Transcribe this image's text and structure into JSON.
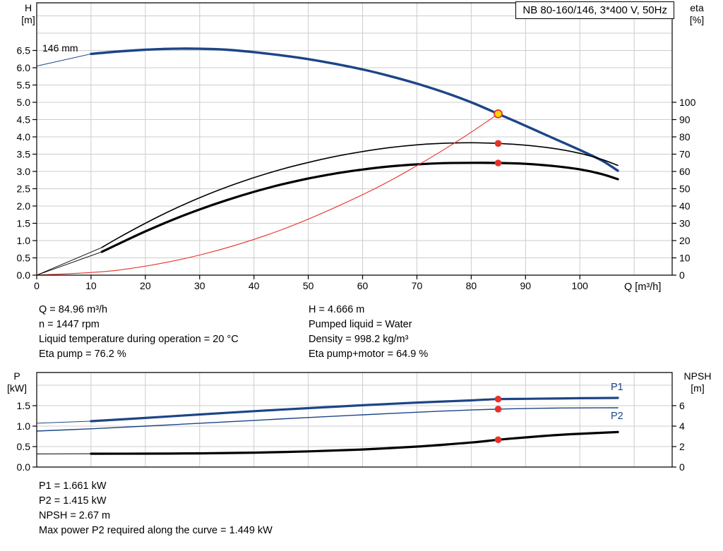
{
  "title_box": {
    "label": "NB 80-160/146, 3*400 V, 50Hz"
  },
  "axes_labels": {
    "h": "H",
    "h_unit": "[m]",
    "eta": "eta",
    "eta_unit": "[%]",
    "q": "Q [m³/h]",
    "p": "P",
    "p_unit": "[kW]",
    "npsh": "NPSH",
    "npsh_unit": "[m]"
  },
  "impeller_label": "146 mm",
  "curve_labels": {
    "p1": "P1",
    "p2": "P2"
  },
  "info_top_left": [
    "Q = 84.96 m³/h",
    "n = 1447 rpm",
    "Liquid temperature during operation = 20 °C",
    "Eta pump = 76.2 %"
  ],
  "info_top_right": [
    "H = 4.666 m",
    "Pumped liquid = Water",
    "Density = 998.2 kg/m³",
    "Eta pump+motor = 64.9 %"
  ],
  "info_bottom": [
    "P1 = 1.661 kW",
    "P2 = 1.415 kW",
    "NPSH = 2.67 m",
    "Max power P2 required along the curve = 1.449 kW"
  ],
  "colors": {
    "curve_blue": "#1c4587",
    "curve_black": "#000000",
    "duty_red": "#e8312a",
    "duty_yellow": "#ffd500",
    "grid": "#cccccc",
    "axis": "#000000"
  },
  "chart_data": [
    {
      "type": "line",
      "name": "qh-eta-chart",
      "title": "NB 80-160/146, 3*400 V, 50Hz",
      "xlabel": "Q [m³/h]",
      "ylabel_left": "H [m]",
      "ylabel_right": "eta [%]",
      "x_range": [
        0,
        117
      ],
      "x_ticks": [
        0,
        10,
        20,
        30,
        40,
        50,
        60,
        70,
        80,
        90,
        100
      ],
      "y_left_ticks": [
        0,
        0.5,
        1,
        1.5,
        2,
        2.5,
        3,
        3.5,
        4,
        4.5,
        5,
        5.5,
        6,
        6.5
      ],
      "y_right_ticks": [
        0,
        10,
        20,
        30,
        40,
        50,
        60,
        70,
        80,
        90,
        100
      ],
      "grid": true,
      "duty_point": {
        "q": 84.96,
        "h": 4.666,
        "eta_pump": 76.2,
        "eta_pump_motor": 64.9
      },
      "series": [
        {
          "name": "h-curve-lead",
          "color": "#1c4587",
          "width": 1,
          "axis": "left",
          "points": [
            [
              0,
              6.05
            ],
            [
              10,
              6.4
            ]
          ]
        },
        {
          "name": "h-curve-146mm",
          "color": "#1c4587",
          "width": 3.4,
          "axis": "left",
          "points": [
            [
              10,
              6.4
            ],
            [
              15,
              6.47
            ],
            [
              20,
              6.52
            ],
            [
              25,
              6.55
            ],
            [
              30,
              6.55
            ],
            [
              35,
              6.52
            ],
            [
              40,
              6.45
            ],
            [
              45,
              6.36
            ],
            [
              50,
              6.25
            ],
            [
              55,
              6.11
            ],
            [
              60,
              5.95
            ],
            [
              65,
              5.76
            ],
            [
              70,
              5.54
            ],
            [
              75,
              5.29
            ],
            [
              80,
              5.0
            ],
            [
              84.96,
              4.666
            ],
            [
              90,
              4.32
            ],
            [
              95,
              3.97
            ],
            [
              100,
              3.62
            ],
            [
              104,
              3.32
            ],
            [
              107,
              3.02
            ]
          ]
        },
        {
          "name": "eta-pump-lead",
          "color": "#000000",
          "width": 0.9,
          "axis": "right",
          "points": [
            [
              0,
              0
            ],
            [
              12,
              16
            ]
          ]
        },
        {
          "name": "eta-pump-curve",
          "color": "#000000",
          "width": 1.6,
          "axis": "right",
          "points": [
            [
              12,
              16
            ],
            [
              15,
              21.5
            ],
            [
              20,
              30
            ],
            [
              25,
              37.8
            ],
            [
              30,
              44.8
            ],
            [
              35,
              51
            ],
            [
              40,
              56.4
            ],
            [
              45,
              61.2
            ],
            [
              50,
              65.2
            ],
            [
              55,
              68.7
            ],
            [
              60,
              71.5
            ],
            [
              65,
              73.8
            ],
            [
              70,
              75.4
            ],
            [
              75,
              76.3
            ],
            [
              80,
              76.6
            ],
            [
              84.96,
              76.2
            ],
            [
              90,
              75.2
            ],
            [
              95,
              73.4
            ],
            [
              100,
              70.5
            ],
            [
              104,
              67
            ],
            [
              107,
              63.5
            ]
          ]
        },
        {
          "name": "eta-pump-motor-lead",
          "color": "#000000",
          "width": 0.9,
          "axis": "right",
          "points": [
            [
              0,
              0
            ],
            [
              12,
              13.5
            ]
          ]
        },
        {
          "name": "eta-pump-motor-curve",
          "color": "#000000",
          "width": 3.2,
          "axis": "right",
          "points": [
            [
              12,
              13.5
            ],
            [
              15,
              18
            ],
            [
              20,
              25.3
            ],
            [
              25,
              32
            ],
            [
              30,
              38
            ],
            [
              35,
              43.4
            ],
            [
              40,
              48.2
            ],
            [
              45,
              52.4
            ],
            [
              50,
              55.9
            ],
            [
              55,
              58.8
            ],
            [
              60,
              61.1
            ],
            [
              65,
              62.9
            ],
            [
              70,
              64.1
            ],
            [
              75,
              64.8
            ],
            [
              80,
              65.0
            ],
            [
              84.96,
              64.9
            ],
            [
              90,
              64.4
            ],
            [
              95,
              63.2
            ],
            [
              100,
              61.2
            ],
            [
              104,
              58.5
            ],
            [
              107,
              55.5
            ]
          ]
        },
        {
          "name": "duty-parabola",
          "color": "#e8312a",
          "width": 1.1,
          "axis": "left",
          "points": [
            [
              0,
              0
            ],
            [
              15,
              0.145
            ],
            [
              30,
              0.582
            ],
            [
              45,
              1.309
            ],
            [
              60,
              2.327
            ],
            [
              70,
              3.167
            ],
            [
              78,
              3.93
            ],
            [
              84.96,
              4.666
            ]
          ]
        }
      ],
      "markers": [
        {
          "q": 84.96,
          "v": 4.666,
          "axis": "left",
          "style": "duty",
          "name": "duty-point-marker"
        },
        {
          "q": 84.96,
          "v": 76.2,
          "axis": "right",
          "style": "dot",
          "name": "eta-pump-point"
        },
        {
          "q": 84.96,
          "v": 64.9,
          "axis": "right",
          "style": "dot",
          "name": "eta-pump-motor-point"
        }
      ]
    },
    {
      "type": "line",
      "name": "power-npsh-chart",
      "title": "",
      "xlabel": "Q [m³/h]",
      "ylabel_left": "P [kW]",
      "ylabel_right": "NPSH [m]",
      "x_range": [
        0,
        117
      ],
      "x_ticks": [],
      "y_left_ticks": [
        0,
        0.5,
        1,
        1.5
      ],
      "y_right_ticks": [
        0,
        2,
        4,
        6
      ],
      "grid": true,
      "duty_point": {
        "q": 84.96,
        "p1": 1.661,
        "p2": 1.415,
        "npsh": 2.67
      },
      "series": [
        {
          "name": "p1-curve-lead",
          "color": "#1c4587",
          "width": 1,
          "axis": "left",
          "points": [
            [
              0,
              1.07
            ],
            [
              10,
              1.12
            ]
          ]
        },
        {
          "name": "p1-curve",
          "color": "#1c4587",
          "width": 3.2,
          "axis": "left",
          "points": [
            [
              10,
              1.12
            ],
            [
              20,
              1.2
            ],
            [
              30,
              1.285
            ],
            [
              40,
              1.365
            ],
            [
              50,
              1.44
            ],
            [
              60,
              1.51
            ],
            [
              70,
              1.575
            ],
            [
              80,
              1.63
            ],
            [
              84.96,
              1.661
            ],
            [
              90,
              1.668
            ],
            [
              95,
              1.675
            ],
            [
              100,
              1.682
            ],
            [
              107,
              1.69
            ]
          ]
        },
        {
          "name": "p2-curve",
          "color": "#1c4587",
          "width": 1.4,
          "axis": "left",
          "points": [
            [
              0,
              0.88
            ],
            [
              10,
              0.935
            ],
            [
              20,
              1.0
            ],
            [
              30,
              1.07
            ],
            [
              40,
              1.14
            ],
            [
              50,
              1.21
            ],
            [
              60,
              1.275
            ],
            [
              70,
              1.34
            ],
            [
              80,
              1.395
            ],
            [
              84.96,
              1.415
            ],
            [
              90,
              1.43
            ],
            [
              95,
              1.44
            ],
            [
              100,
              1.445
            ],
            [
              107,
              1.449
            ]
          ]
        },
        {
          "name": "npsh-curve-lead",
          "color": "#000000",
          "width": 1,
          "axis": "right",
          "points": [
            [
              0,
              1.28
            ],
            [
              10,
              1.3
            ]
          ]
        },
        {
          "name": "npsh-curve",
          "color": "#000000",
          "width": 3.2,
          "axis": "right",
          "points": [
            [
              10,
              1.3
            ],
            [
              20,
              1.31
            ],
            [
              30,
              1.34
            ],
            [
              40,
              1.41
            ],
            [
              50,
              1.53
            ],
            [
              60,
              1.72
            ],
            [
              70,
              2.0
            ],
            [
              80,
              2.4
            ],
            [
              84.96,
              2.67
            ],
            [
              90,
              2.9
            ],
            [
              95,
              3.1
            ],
            [
              100,
              3.25
            ],
            [
              107,
              3.42
            ]
          ]
        }
      ],
      "markers": [
        {
          "q": 84.96,
          "v": 1.661,
          "axis": "left",
          "style": "dot",
          "name": "p1-point"
        },
        {
          "q": 84.96,
          "v": 1.415,
          "axis": "left",
          "style": "dot",
          "name": "p2-point"
        },
        {
          "q": 84.96,
          "v": 2.67,
          "axis": "right",
          "style": "dot",
          "name": "npsh-point"
        }
      ]
    }
  ]
}
